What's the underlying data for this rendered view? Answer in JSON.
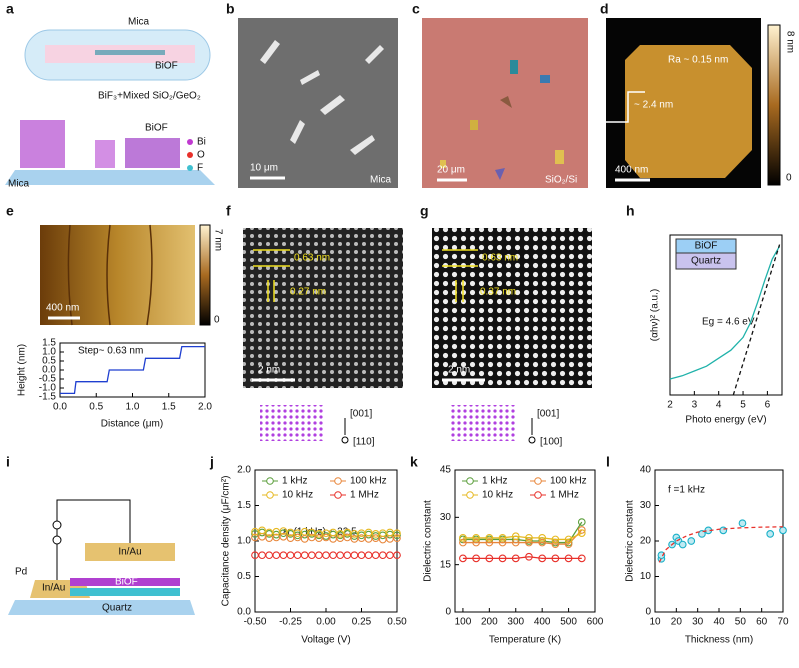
{
  "panels": {
    "a": {
      "label": "a",
      "top": "Mica",
      "film": "BiOF",
      "source": "BiF₃+Mixed SiO₂/GeO₂",
      "structure": "BiOF",
      "legend": [
        "Bi",
        "O",
        "F"
      ],
      "substrate": "Mica"
    },
    "b": {
      "label": "b",
      "scale_bar": "10 μm",
      "substrate": "Mica"
    },
    "c": {
      "label": "c",
      "scale_bar": "20 μm",
      "substrate": "SiO₂/Si"
    },
    "d": {
      "label": "d",
      "roughness": "Ra ~ 0.15 nm",
      "thickness": "~ 2.4 nm",
      "scale_bar": "400 nm",
      "colorbar": [
        "8 nm",
        "0"
      ]
    },
    "e": {
      "label": "e",
      "scale_bar": "400 nm",
      "colorbar": [
        "7 nm",
        "0"
      ]
    },
    "f": {
      "label": "f",
      "spacings": [
        "0.63 nm",
        "0.27 nm"
      ],
      "scale_bar": "2 nm",
      "axes": [
        "[001]",
        "[110]"
      ]
    },
    "g": {
      "label": "g",
      "spacings": [
        "0.63 nm",
        "0.37 nm"
      ],
      "scale_bar": "2 nm",
      "axes": [
        "[001]",
        "[100]"
      ]
    },
    "h": {
      "label": "h",
      "layers": [
        "BiOF",
        "Quartz"
      ]
    },
    "i": {
      "label": "i",
      "electrodes": [
        "In/Au",
        "In/Au"
      ],
      "channel": "BiOF",
      "gate": "Pd",
      "substrate": "Quartz"
    },
    "j": {
      "label": "j"
    },
    "k": {
      "label": "k"
    },
    "l": {
      "label": "l"
    }
  },
  "chart_data": [
    {
      "type": "line",
      "y_label": "Height (nm)",
      "x_label": "Distance (μm)",
      "annotation": "Step~ 0.63 nm",
      "xlim": [
        0,
        2
      ],
      "xticks": [
        {
          "value": 0,
          "label": "0.0"
        },
        0.5,
        {
          "value": 1,
          "label": "1.0"
        },
        1.5,
        {
          "value": 2,
          "label": "2.0"
        }
      ],
      "ylim": [
        -1.5,
        1.5
      ],
      "yticks": [
        -1.5,
        {
          "value": -1,
          "label": "-1.0"
        },
        -0.5,
        {
          "value": 0,
          "label": "0.0"
        },
        0.5,
        {
          "value": 1,
          "label": "1.0"
        },
        1.5
      ],
      "series": [
        {
          "color": "#1f3fd0",
          "line": "solid",
          "marker": "none",
          "x": [
            0,
            0.2,
            0.22,
            0.65,
            0.68,
            1.15,
            1.18,
            1.65,
            1.68,
            2.0
          ],
          "values": [
            -1.3,
            -1.3,
            -0.65,
            -0.65,
            0,
            0,
            0.65,
            0.65,
            1.3,
            1.3
          ]
        }
      ]
    },
    {
      "type": "line",
      "y_label": "(αhν)² (a.u.)",
      "x_label": "Photo energy (eV)",
      "annotation": "Eg = 4.6 eV",
      "xlim": [
        2,
        6.6
      ],
      "xticks": [
        2,
        3,
        4,
        5,
        6
      ],
      "ylim": [
        0,
        10
      ],
      "yticks": [],
      "series": [
        {
          "color": "#20b2aa",
          "line": "solid",
          "marker": "none",
          "x": [
            2.0,
            2.5,
            3.0,
            3.5,
            4.0,
            4.5,
            5.0,
            5.3,
            5.6,
            5.9,
            6.2,
            6.5
          ],
          "values": [
            1.0,
            1.2,
            1.5,
            1.8,
            2.3,
            2.8,
            3.6,
            4.5,
            5.8,
            7.2,
            8.5,
            9.3
          ]
        },
        {
          "color": "#111111",
          "line": "dashed",
          "marker": "none",
          "x": [
            4.6,
            6.5
          ],
          "values": [
            0,
            9.4
          ]
        }
      ]
    },
    {
      "type": "line",
      "y_label": "Capacitance density (μF/cm²)",
      "x_label": "Voltage (V)",
      "annotation": "εr (1 kHz) ~ 22.5",
      "legend": "top",
      "xlim": [
        -0.5,
        0.5
      ],
      "xticks": [
        {
          "value": -0.5,
          "label": "-0.50"
        },
        -0.25,
        {
          "value": 0,
          "label": "0.00"
        },
        0.25,
        {
          "value": 0.5,
          "label": "0.50"
        }
      ],
      "ylim": [
        0,
        2
      ],
      "yticks": [
        {
          "value": 0,
          "label": "0.0"
        },
        0.5,
        {
          "value": 1,
          "label": "1.0"
        },
        1.5,
        {
          "value": 2,
          "label": "2.0"
        }
      ],
      "x": [
        -0.5,
        -0.45,
        -0.4,
        -0.35,
        -0.3,
        -0.25,
        -0.2,
        -0.15,
        -0.1,
        -0.05,
        0,
        0.05,
        0.1,
        0.15,
        0.2,
        0.25,
        0.3,
        0.35,
        0.4,
        0.45,
        0.5
      ],
      "series": [
        {
          "name": "1 kHz",
          "color": "#5a9e3a",
          "line": "none",
          "marker": "circle",
          "values": [
            1.1,
            1.12,
            1.1,
            1.09,
            1.11,
            1.1,
            1.08,
            1.09,
            1.1,
            1.08,
            1.07,
            1.09,
            1.08,
            1.1,
            1.07,
            1.08,
            1.09,
            1.07,
            1.08,
            1.09,
            1.08
          ]
        },
        {
          "name": "100 kHz",
          "color": "#e8863a",
          "line": "none",
          "marker": "circle",
          "values": [
            1.05,
            1.06,
            1.04,
            1.05,
            1.06,
            1.04,
            1.05,
            1.03,
            1.05,
            1.04,
            1.05,
            1.03,
            1.04,
            1.05,
            1.03,
            1.04,
            1.03,
            1.04,
            1.02,
            1.03,
            1.04
          ]
        },
        {
          "name": "10 kHz",
          "color": "#e6b820",
          "line": "none",
          "marker": "circle",
          "values": [
            1.13,
            1.15,
            1.12,
            1.13,
            1.14,
            1.12,
            1.11,
            1.13,
            1.12,
            1.1,
            1.11,
            1.12,
            1.1,
            1.12,
            1.1,
            1.11,
            1.12,
            1.1,
            1.11,
            1.12,
            1.11
          ]
        },
        {
          "name": "1 MHz",
          "color": "#e8302a",
          "line": "none",
          "marker": "circle",
          "values": [
            0.8,
            0.8,
            0.8,
            0.8,
            0.8,
            0.8,
            0.8,
            0.8,
            0.8,
            0.8,
            0.8,
            0.8,
            0.8,
            0.8,
            0.8,
            0.8,
            0.8,
            0.8,
            0.8,
            0.8,
            0.8
          ]
        }
      ]
    },
    {
      "type": "line",
      "y_label": "Dielectric constant",
      "x_label": "Temperature (K)",
      "legend": "top",
      "xlim": [
        70,
        600
      ],
      "xticks": [
        100,
        200,
        300,
        400,
        500,
        600
      ],
      "ylim": [
        0,
        45
      ],
      "yticks": [
        0,
        15,
        30,
        45
      ],
      "x": [
        100,
        150,
        200,
        250,
        300,
        350,
        400,
        450,
        500,
        550
      ],
      "series": [
        {
          "name": "1 kHz",
          "color": "#5a9e3a",
          "line": "solid",
          "marker": "circle",
          "values": [
            23,
            23,
            23,
            23,
            23,
            22.5,
            22.5,
            22,
            22,
            28.5
          ]
        },
        {
          "name": "100 kHz",
          "color": "#e8863a",
          "line": "solid",
          "marker": "circle",
          "values": [
            22,
            22,
            22,
            22,
            22,
            22,
            22,
            21.5,
            21.5,
            26
          ]
        },
        {
          "name": "10 kHz",
          "color": "#e6b820",
          "line": "solid",
          "marker": "circle",
          "values": [
            23.5,
            23.5,
            23.5,
            23.5,
            24,
            23.5,
            23.5,
            23,
            23,
            25
          ]
        },
        {
          "name": "1 MHz",
          "color": "#e8302a",
          "line": "solid",
          "marker": "circle",
          "values": [
            17,
            17,
            17,
            17,
            17,
            17.5,
            17,
            17,
            17,
            17
          ]
        }
      ]
    },
    {
      "type": "scatter",
      "y_label": "Dielectric constant",
      "x_label": "Thickness (nm)",
      "annotation": "f =1 kHz",
      "xlim": [
        10,
        70
      ],
      "xticks": [
        10,
        20,
        30,
        40,
        50,
        60,
        70
      ],
      "ylim": [
        0,
        40
      ],
      "yticks": [
        0,
        10,
        20,
        30,
        40
      ],
      "series": [
        {
          "color": "#1ab0c8",
          "line": "none",
          "marker": "circle",
          "x": [
            13,
            13,
            18,
            20,
            21,
            23,
            27,
            32,
            35,
            42,
            51,
            64,
            70
          ],
          "values": [
            15,
            16,
            19,
            21,
            20,
            19,
            20,
            22,
            23,
            23,
            25,
            22,
            23
          ]
        },
        {
          "color": "#e8302a",
          "line": "dashed",
          "marker": "none",
          "x": [
            12,
            15,
            20,
            25,
            30,
            40,
            50,
            60,
            70
          ],
          "values": [
            14,
            17.5,
            20,
            21.5,
            22.5,
            23.3,
            23.7,
            23.9,
            24
          ]
        }
      ]
    }
  ]
}
